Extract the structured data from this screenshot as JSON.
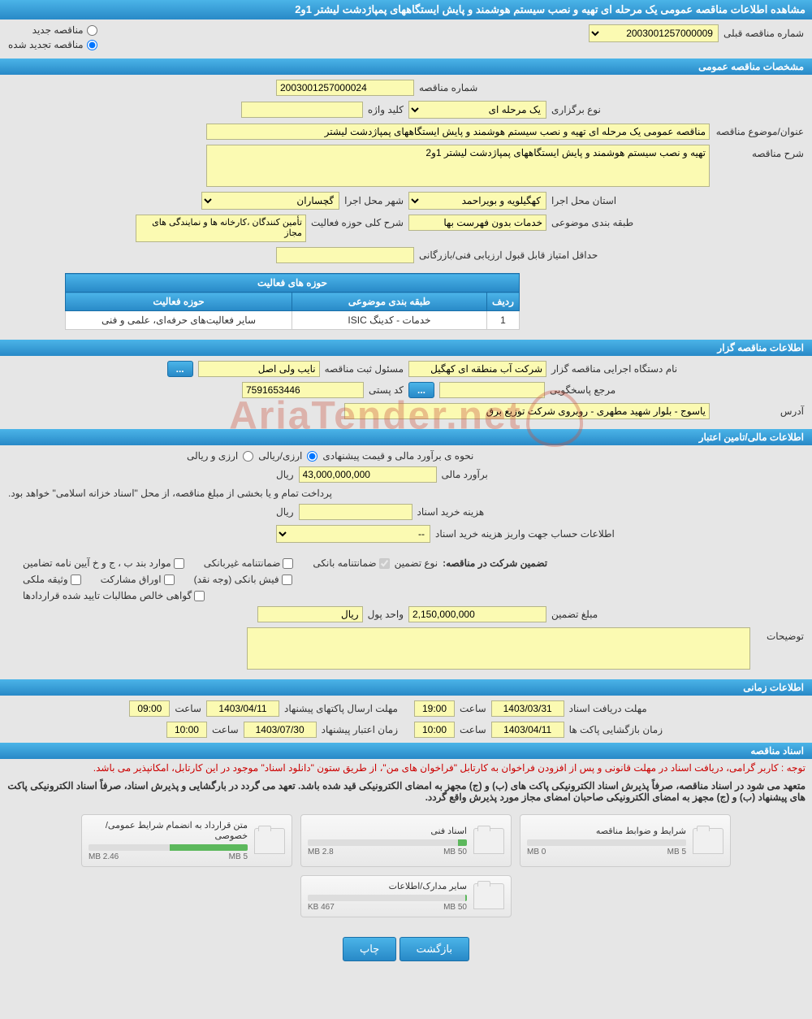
{
  "page_title": "مشاهده اطلاعات مناقصه عمومی یک مرحله ای تهیه و نصب سیستم هوشمند و پایش ایستگاههای پمپاژدشت لیشتر 1و2",
  "top": {
    "new_tender_label": "مناقصه جدید",
    "renewed_tender_label": "مناقصه تجدید شده",
    "prev_number_label": "شماره مناقصه قبلی",
    "prev_number_value": "2003001257000009"
  },
  "sections": {
    "general": "مشخصات مناقصه عمومی",
    "organizer": "اطلاعات مناقصه گزار",
    "financial": "اطلاعات مالی/تامین اعتبار",
    "timing": "اطلاعات زمانی",
    "docs": "اسناد مناقصه"
  },
  "general": {
    "tender_number_label": "شماره مناقصه",
    "tender_number": "2003001257000024",
    "type_label": "نوع برگزاری",
    "type_value": "یک مرحله ای",
    "keyword_label": "کلید واژه",
    "keyword_value": "",
    "subject_label": "عنوان/موضوع مناقصه",
    "subject_value": "مناقصه عمومی یک مرحله ای تهیه و نصب سیستم هوشمند و پایش ایستگاههای پمپاژدشت لیشتر",
    "desc_label": "شرح مناقصه",
    "desc_value": "تهیه و نصب سیستم هوشمند و پایش ایستگاههای پمپاژدشت لیشتر 1و2",
    "province_label": "استان محل اجرا",
    "province_value": "کهگیلویه و بویراحمد",
    "city_label": "شهر محل اجرا",
    "city_value": "گچساران",
    "category_label": "طبقه بندی موضوعی",
    "category_value": "خدمات بدون فهرست بها",
    "scope_desc_label": "شرح کلی حوزه فعالیت",
    "scope_desc_value": "تأمین کنندگان ،کارخانه ها و نمایندگی های مجاز",
    "min_score_label": "حداقل امتیاز قابل قبول ارزیابی فنی/بازرگانی",
    "min_score_value": ""
  },
  "activity_table": {
    "caption": "حوزه های فعالیت",
    "col_row": "ردیف",
    "col_category": "طبقه بندی موضوعی",
    "col_scope": "حوزه فعالیت",
    "rows": [
      {
        "n": "1",
        "category": "خدمات - کدینگ ISIC",
        "scope": "سایر فعالیت‌های حرفه‌ای، علمی و فنی"
      }
    ]
  },
  "organizer": {
    "org_name_label": "نام دستگاه اجرایی مناقصه گزار",
    "org_name": "شرکت آب منطقه ای کهگیل",
    "reg_officer_label": "مسئول ثبت مناقصه",
    "reg_officer": "نایب ولی اصل",
    "responder_label": "مرجع پاسخگویی",
    "responder_value": "",
    "postal_label": "کد پستی",
    "postal": "7591653446",
    "address_label": "آدرس",
    "address": "یاسوج - بلوار شهید مطهری - روبروی شرکت توزیع برق",
    "dots": "..."
  },
  "financial": {
    "estimate_method_label": "نحوه ی برآورد مالی و قیمت پیشنهادی",
    "currency_rial": "ارزی/ریالی",
    "currency_both": "ارزی و ریالی",
    "estimate_label": "برآورد مالی",
    "estimate_value": "43,000,000,000",
    "rial": "ریال",
    "treasury_note": "پرداخت تمام و یا بخشی از مبلغ مناقصه، از محل \"اسناد خزانه اسلامی\" خواهد بود.",
    "doc_cost_label": "هزینه خرید اسناد",
    "doc_cost_value": "",
    "account_label": "اطلاعات حساب جهت واریز هزینه خرید اسناد",
    "account_value": "--",
    "guarantee_title": "تضمین شرکت در مناقصه:",
    "guarantee_type_label": "نوع تضمین",
    "g1": "ضمانتنامه بانکی",
    "g2": "ضمانتنامه غیربانکی",
    "g3": "موارد بند ب ، ج و خ آیین نامه تضامین",
    "g4": "فیش بانکی (وجه نقد)",
    "g5": "اوراق مشارکت",
    "g6": "وثیقه ملکی",
    "g7": "گواهی خالص مطالبات تایید شده قراردادها",
    "guarantee_amount_label": "مبلغ تضمین",
    "guarantee_amount": "2,150,000,000",
    "currency_unit_label": "واحد پول",
    "currency_unit": "ریال",
    "notes_label": "توضیحات",
    "notes_value": ""
  },
  "timing": {
    "doc_receive_label": "مهلت دریافت اسناد",
    "doc_receive_date": "1403/03/31",
    "doc_receive_time": "19:00",
    "bid_send_label": "مهلت ارسال پاکتهای پیشنهاد",
    "bid_send_date": "1403/04/11",
    "bid_send_time": "09:00",
    "open_label": "زمان بازگشایی پاکت ها",
    "open_date": "1403/04/11",
    "open_time": "10:00",
    "validity_label": "زمان اعتبار پیشنهاد",
    "validity_date": "1403/07/30",
    "validity_time": "10:00",
    "time_label": "ساعت"
  },
  "docs": {
    "note_red": "توجه : کاربر گرامی، دریافت اسناد در مهلت قانونی و پس از افزودن فراخوان به کارتابل \"فراخوان های من\"، از طریق ستون \"دانلود اسناد\" موجود در این کارتابل، امکانپذیر می باشد.",
    "note_bold": "متعهد می شود در اسناد مناقصه، صرفاً پذیرش اسناد الکترونیکی پاکت های (ب) و (ج) مجهز به امضای الکترونیکی قید شده باشد. تعهد می گردد در بارگشایی و پذیرش اسناد، صرفاً اسناد الکترونیکی پاکت های پیشنهاد (ب) و (ج) مجهز به امضای الکترونیکی صاحبان امضای مجاز مورد پذیرش واقع گردد.",
    "items": [
      {
        "title": "شرایط و ضوابط مناقصه",
        "used": "0 MB",
        "max": "5 MB",
        "pct": 0
      },
      {
        "title": "اسناد فنی",
        "used": "2.8 MB",
        "max": "50 MB",
        "pct": 5.6
      },
      {
        "title": "متن قرارداد به انضمام شرایط عمومی/خصوصی",
        "used": "2.46 MB",
        "max": "5 MB",
        "pct": 49
      },
      {
        "title": "سایر مدارک/اطلاعات",
        "used": "467 KB",
        "max": "50 MB",
        "pct": 1
      }
    ]
  },
  "footer": {
    "back": "بازگشت",
    "print": "چاپ"
  },
  "watermark": "AriaTender.net"
}
